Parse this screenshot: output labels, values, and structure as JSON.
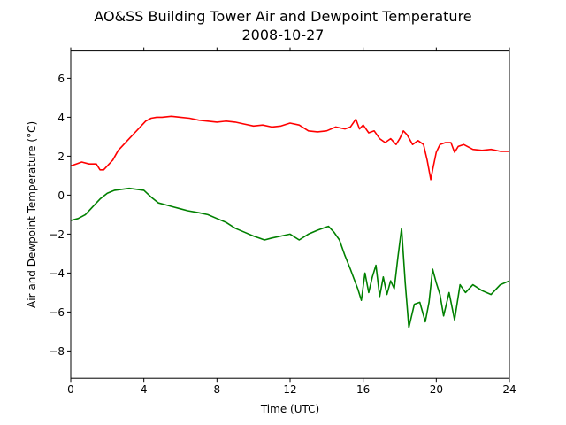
{
  "chart_data": {
    "type": "line",
    "title": "AO&SS Building Tower Air and Dewpoint Temperature",
    "subtitle": "2008-10-27",
    "xlabel": "Time (UTC)",
    "ylabel": "Air and Dewpoint Temperature (°C)",
    "xlim": [
      0,
      24
    ],
    "ylim": [
      -9.4,
      7.4
    ],
    "xticks": [
      0,
      4,
      8,
      12,
      16,
      20,
      24
    ],
    "xtick_labels": [
      "0",
      "4",
      "8",
      "12",
      "16",
      "20",
      "24"
    ],
    "yticks": [
      -8,
      -6,
      -4,
      -2,
      0,
      2,
      4,
      6
    ],
    "ytick_labels": [
      "−8",
      "−6",
      "−4",
      "−2",
      "0",
      "2",
      "4",
      "6"
    ],
    "grid": false,
    "series": [
      {
        "color": "#ff0000",
        "x": [
          0,
          0.3,
          0.6,
          1.0,
          1.4,
          1.6,
          1.8,
          2.0,
          2.3,
          2.6,
          2.9,
          3.2,
          3.5,
          3.8,
          4.1,
          4.4,
          4.7,
          5.0,
          5.5,
          6.0,
          6.5,
          7.0,
          7.5,
          8.0,
          8.5,
          9.0,
          9.5,
          10.0,
          10.5,
          11.0,
          11.5,
          12.0,
          12.5,
          13.0,
          13.5,
          14.0,
          14.5,
          15.0,
          15.3,
          15.6,
          15.8,
          16.0,
          16.3,
          16.6,
          16.9,
          17.2,
          17.5,
          17.8,
          18.0,
          18.2,
          18.4,
          18.7,
          19.0,
          19.3,
          19.5,
          19.7,
          19.8,
          20.0,
          20.2,
          20.5,
          20.8,
          21.0,
          21.2,
          21.5,
          22.0,
          22.5,
          23.0,
          23.5,
          24.0
        ],
        "y": [
          1.5,
          1.6,
          1.7,
          1.6,
          1.6,
          1.3,
          1.3,
          1.5,
          1.8,
          2.3,
          2.6,
          2.9,
          3.2,
          3.5,
          3.8,
          3.95,
          4.0,
          4.0,
          4.05,
          4.0,
          3.95,
          3.85,
          3.8,
          3.75,
          3.8,
          3.75,
          3.65,
          3.55,
          3.6,
          3.5,
          3.55,
          3.7,
          3.6,
          3.3,
          3.25,
          3.3,
          3.5,
          3.4,
          3.5,
          3.9,
          3.4,
          3.6,
          3.2,
          3.3,
          2.9,
          2.7,
          2.9,
          2.6,
          2.9,
          3.3,
          3.1,
          2.6,
          2.8,
          2.6,
          1.8,
          0.8,
          1.3,
          2.2,
          2.6,
          2.7,
          2.7,
          2.2,
          2.5,
          2.6,
          2.35,
          2.3,
          2.35,
          2.25,
          2.25
        ]
      },
      {
        "color": "#008000",
        "x": [
          0,
          0.4,
          0.8,
          1.2,
          1.6,
          2.0,
          2.4,
          2.8,
          3.2,
          3.6,
          4.0,
          4.4,
          4.8,
          5.2,
          5.6,
          6.0,
          6.4,
          7.0,
          7.5,
          8.0,
          8.5,
          9.0,
          9.5,
          10.0,
          10.3,
          10.6,
          11.0,
          11.5,
          12.0,
          12.5,
          13.0,
          13.5,
          13.8,
          14.1,
          14.4,
          14.7,
          15.0,
          15.3,
          15.5,
          15.7,
          15.9,
          16.1,
          16.3,
          16.5,
          16.7,
          16.9,
          17.1,
          17.3,
          17.5,
          17.7,
          17.9,
          18.1,
          18.3,
          18.5,
          18.8,
          19.1,
          19.4,
          19.6,
          19.8,
          20.0,
          20.2,
          20.4,
          20.7,
          21.0,
          21.3,
          21.6,
          22.0,
          22.5,
          23.0,
          23.5,
          24.0
        ],
        "y": [
          -1.3,
          -1.2,
          -1.0,
          -0.6,
          -0.2,
          0.1,
          0.25,
          0.3,
          0.35,
          0.3,
          0.25,
          -0.1,
          -0.4,
          -0.5,
          -0.6,
          -0.7,
          -0.8,
          -0.9,
          -1.0,
          -1.2,
          -1.4,
          -1.7,
          -1.9,
          -2.1,
          -2.2,
          -2.3,
          -2.2,
          -2.1,
          -2.0,
          -2.3,
          -2.0,
          -1.8,
          -1.7,
          -1.6,
          -1.9,
          -2.3,
          -3.1,
          -3.8,
          -4.3,
          -4.8,
          -5.4,
          -4.0,
          -5.0,
          -4.2,
          -3.6,
          -5.2,
          -4.2,
          -5.1,
          -4.4,
          -4.8,
          -3.2,
          -1.7,
          -4.5,
          -6.8,
          -5.6,
          -5.5,
          -6.5,
          -5.5,
          -3.8,
          -4.5,
          -5.1,
          -6.2,
          -5.0,
          -6.4,
          -4.6,
          -5.0,
          -4.6,
          -4.9,
          -5.1,
          -4.6,
          -4.4
        ]
      }
    ]
  }
}
